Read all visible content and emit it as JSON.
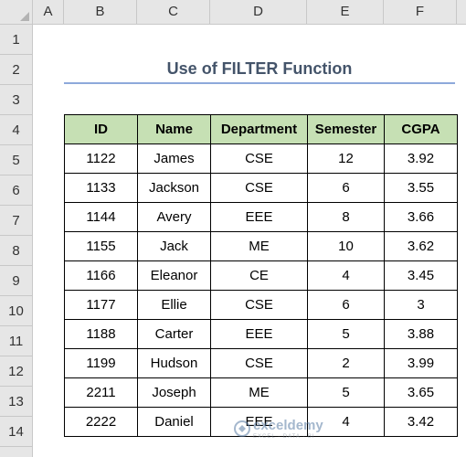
{
  "columns": [
    "A",
    "B",
    "C",
    "D",
    "E",
    "F"
  ],
  "rows": [
    "1",
    "2",
    "3",
    "4",
    "5",
    "6",
    "7",
    "8",
    "9",
    "10",
    "11",
    "12",
    "13",
    "14"
  ],
  "title": "Use of FILTER Function",
  "table": {
    "headers": [
      "ID",
      "Name",
      "Department",
      "Semester",
      "CGPA"
    ],
    "rows": [
      [
        "1122",
        "James",
        "CSE",
        "12",
        "3.92"
      ],
      [
        "1133",
        "Jackson",
        "CSE",
        "6",
        "3.55"
      ],
      [
        "1144",
        "Avery",
        "EEE",
        "8",
        "3.66"
      ],
      [
        "1155",
        "Jack",
        "ME",
        "10",
        "3.62"
      ],
      [
        "1166",
        "Eleanor",
        "CE",
        "4",
        "3.45"
      ],
      [
        "1177",
        "Ellie",
        "CSE",
        "6",
        "3"
      ],
      [
        "1188",
        "Carter",
        "EEE",
        "5",
        "3.88"
      ],
      [
        "1199",
        "Hudson",
        "CSE",
        "2",
        "3.99"
      ],
      [
        "2211",
        "Joseph",
        "ME",
        "5",
        "3.65"
      ],
      [
        "2222",
        "Daniel",
        "EEE",
        "4",
        "3.42"
      ]
    ]
  },
  "watermark": {
    "name": "exceldemy",
    "tagline": "EXCEL · DATA · BI",
    "icon": "exceldemy-logo-icon"
  }
}
